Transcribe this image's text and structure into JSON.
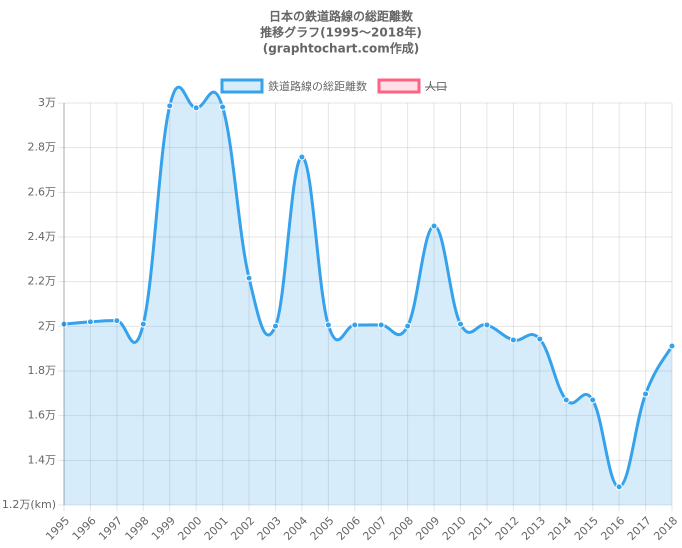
{
  "chart_data": {
    "type": "line",
    "title": [
      "日本の鉄道路線の総距離数",
      "推移グラフ(1995～2018年)",
      "(graphtochart.com作成)"
    ],
    "categories": [
      "1995",
      "1996",
      "1997",
      "1998",
      "1999",
      "2000",
      "2001",
      "2002",
      "2003",
      "2004",
      "2005",
      "2006",
      "2007",
      "2008",
      "2009",
      "2010",
      "2011",
      "2012",
      "2013",
      "2014",
      "2015",
      "2016",
      "2017",
      "2018"
    ],
    "series": [
      {
        "name": "鉄道路線の総距離数",
        "color": "#36a2eb",
        "fill": "rgba(54,162,235,0.2)",
        "values": [
          20100,
          20200,
          20250,
          20100,
          29870,
          29780,
          29820,
          22160,
          20010,
          27580,
          20060,
          20060,
          20060,
          20010,
          24490,
          20100,
          20060,
          19390,
          19430,
          16700,
          16700,
          12810,
          16970,
          19120
        ]
      },
      {
        "name": "人口",
        "color": "#ff6384",
        "fill": "rgba(255,99,132,0.2)",
        "hidden": true
      }
    ],
    "ylim": [
      12000,
      30000
    ],
    "yticks": [
      {
        "value": 12000,
        "label": "1.2万(km)"
      },
      {
        "value": 14000,
        "label": "1.4万"
      },
      {
        "value": 16000,
        "label": "1.6万"
      },
      {
        "value": 18000,
        "label": "1.8万"
      },
      {
        "value": 20000,
        "label": "2万"
      },
      {
        "value": 22000,
        "label": "2.2万"
      },
      {
        "value": 24000,
        "label": "2.4万"
      },
      {
        "value": 26000,
        "label": "2.6万"
      },
      {
        "value": 28000,
        "label": "2.8万"
      },
      {
        "value": 30000,
        "label": "3万"
      }
    ],
    "grid": true
  }
}
